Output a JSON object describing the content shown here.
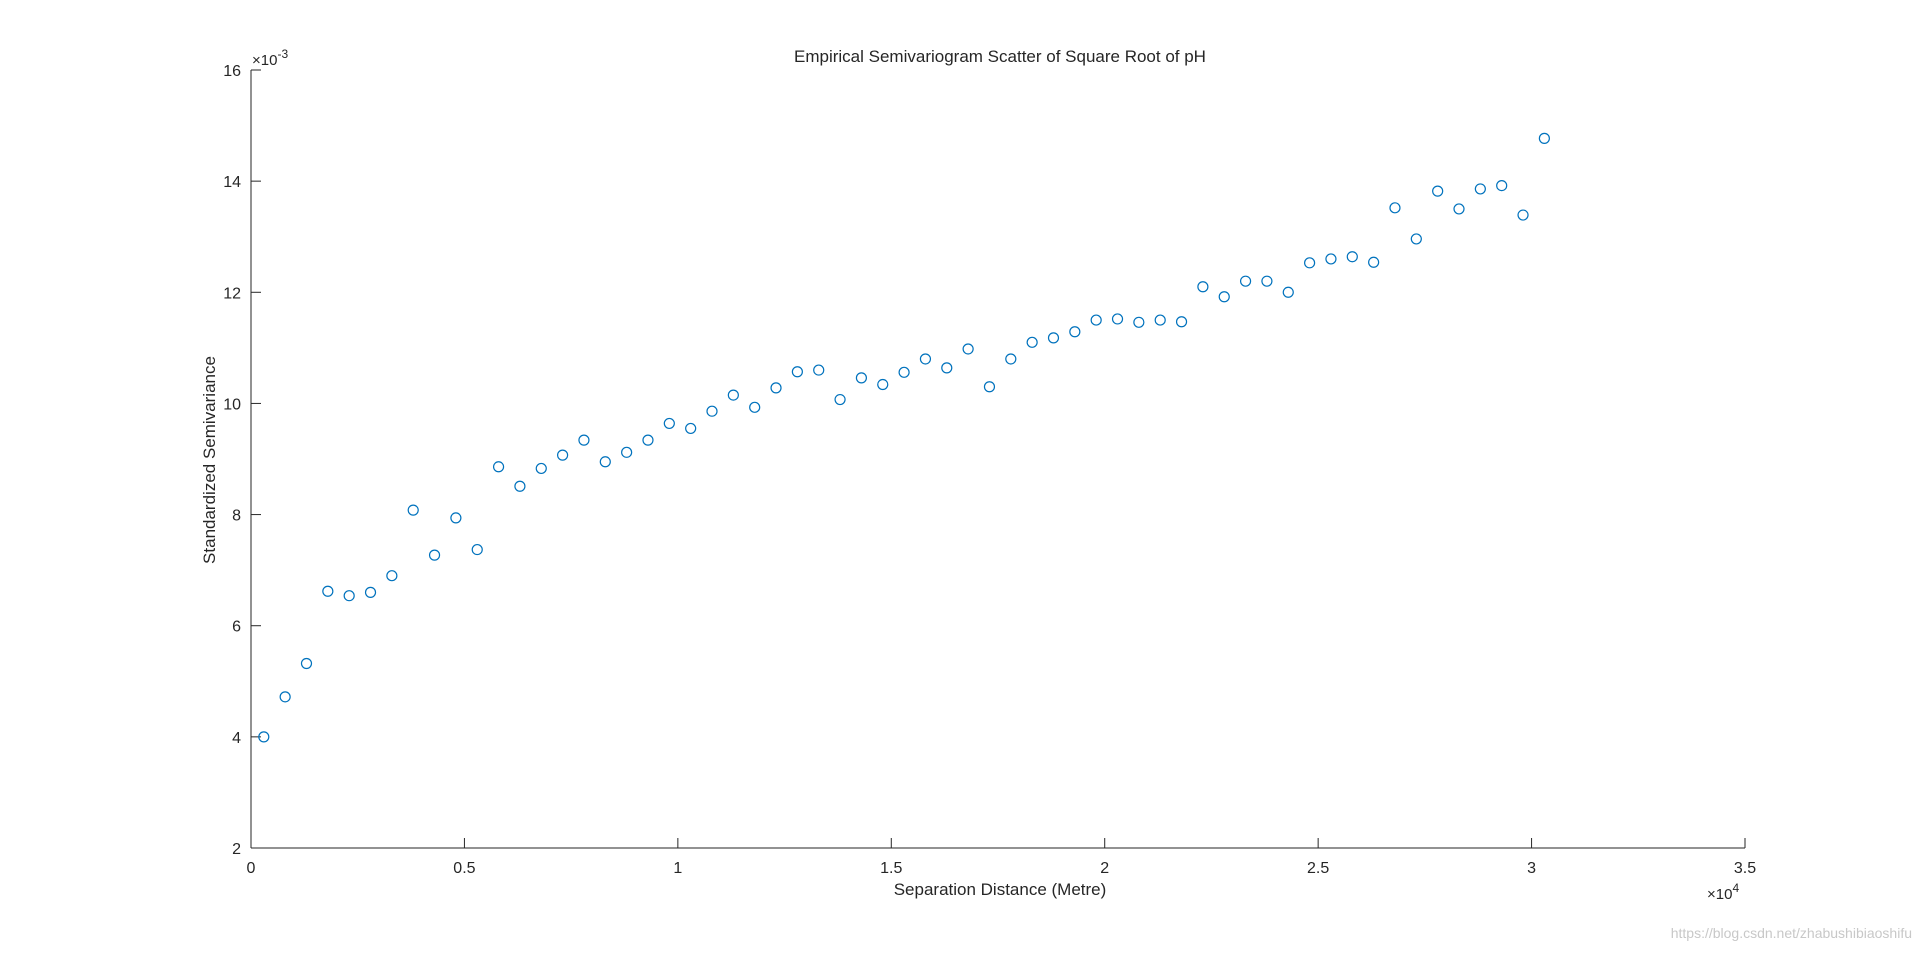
{
  "chart_data": {
    "type": "scatter",
    "title": "Empirical Semivariogram Scatter of Square Root of pH",
    "xlabel": "Separation Distance (Metre)",
    "ylabel": "Standardized Semivariance",
    "x_multiplier": "×10",
    "x_multiplier_exp": "4",
    "y_multiplier": "×10",
    "y_multiplier_exp": "-3",
    "xlim": [
      0,
      35000
    ],
    "ylim": [
      0.002,
      0.016
    ],
    "x_ticks": [
      0,
      5000,
      10000,
      15000,
      20000,
      25000,
      30000,
      35000
    ],
    "x_tick_labels": [
      "0",
      "0.5",
      "1",
      "1.5",
      "2",
      "2.5",
      "3",
      "3.5"
    ],
    "y_ticks": [
      0.002,
      0.004,
      0.006,
      0.008,
      0.01,
      0.012,
      0.014,
      0.016
    ],
    "y_tick_labels": [
      "2",
      "4",
      "6",
      "8",
      "10",
      "12",
      "14",
      "16"
    ],
    "grid": false,
    "marker": "open-circle",
    "marker_color": "#0072BD",
    "series": [
      {
        "x": [
          300,
          800,
          1300,
          1800,
          2300,
          2800,
          3300,
          3800,
          4300,
          4800,
          5300,
          5800,
          6300,
          6800,
          7300,
          7800,
          8300,
          8800,
          9300,
          9800,
          10300,
          10800,
          11300,
          11800,
          12300,
          12800,
          13300,
          13800,
          14300,
          14800,
          15300,
          15800,
          16300,
          16800,
          17300,
          17800,
          18300,
          18800,
          19300,
          19800,
          20300,
          20800,
          21300,
          21800,
          22300,
          22800,
          23300,
          23800,
          24300,
          24800,
          25300,
          25800,
          26300,
          26800,
          27300,
          27800,
          28300,
          28800,
          29300,
          29800,
          30300
        ],
        "y": [
          0.004,
          0.00472,
          0.00532,
          0.00662,
          0.00654,
          0.0066,
          0.0069,
          0.00808,
          0.00727,
          0.00794,
          0.00737,
          0.00886,
          0.00851,
          0.00883,
          0.00907,
          0.00934,
          0.00895,
          0.00912,
          0.00934,
          0.00964,
          0.00955,
          0.00986,
          0.01015,
          0.00993,
          0.01028,
          0.01057,
          0.0106,
          0.01007,
          0.01046,
          0.01034,
          0.01056,
          0.0108,
          0.01064,
          0.01098,
          0.0103,
          0.0108,
          0.0111,
          0.01118,
          0.01129,
          0.0115,
          0.01152,
          0.01146,
          0.0115,
          0.01147,
          0.0121,
          0.01192,
          0.0122,
          0.0122,
          0.012,
          0.01253,
          0.0126,
          0.01264,
          0.01254,
          0.01352,
          0.01296,
          0.01382,
          0.0135,
          0.01386,
          0.01392,
          0.01339,
          0.01477
        ]
      }
    ]
  },
  "watermark": "https://blog.csdn.net/zhabushibiaoshifu"
}
